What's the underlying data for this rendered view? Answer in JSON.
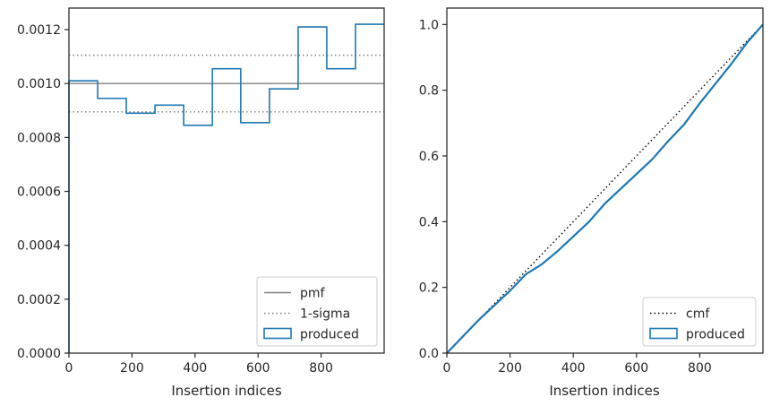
{
  "chart_data": [
    {
      "type": "histogram-step",
      "xlabel": "Insertion indices",
      "ylabel": "",
      "xlim": [
        0,
        1000
      ],
      "ylim": [
        0,
        0.00128
      ],
      "xticks": [
        0,
        200,
        400,
        600,
        800
      ],
      "xtick_labels": [
        "0",
        "200",
        "400",
        "600",
        "800"
      ],
      "yticks": [
        0,
        0.0002,
        0.0004,
        0.0006,
        0.0008,
        0.001,
        0.0012
      ],
      "ytick_labels": [
        "0.0000",
        "0.0002",
        "0.0004",
        "0.0006",
        "0.0008",
        "0.0010",
        "0.0012"
      ],
      "bin_edges": [
        0,
        91,
        182,
        273,
        364,
        455,
        545,
        636,
        727,
        818,
        909,
        1000
      ],
      "series": [
        {
          "name": "produced",
          "style": "step",
          "color": "#1f77b4",
          "values": [
            0.00101,
            0.000945,
            0.00089,
            0.00092,
            0.000845,
            0.001055,
            0.000855,
            0.00098,
            0.00121,
            0.001055,
            0.00122
          ]
        }
      ],
      "reference_lines": [
        {
          "name": "pmf",
          "style": "solid",
          "color": "#808080",
          "y": 0.001
        },
        {
          "name": "1-sigma",
          "style": "dotted",
          "color": "#808080",
          "y": [
            0.000895,
            0.001105
          ]
        }
      ],
      "legend": {
        "placement": "lower-right",
        "entries": [
          {
            "label": "pmf",
            "kind": "solid-line",
            "color": "#808080"
          },
          {
            "label": "1-sigma",
            "kind": "dotted-line",
            "color": "#808080"
          },
          {
            "label": "produced",
            "kind": "patch",
            "color": "#1f77b4"
          }
        ]
      },
      "grid": false
    },
    {
      "type": "line",
      "xlabel": "Insertion indices",
      "ylabel": "",
      "xlim": [
        0,
        1000
      ],
      "ylim": [
        0,
        1.05
      ],
      "xticks": [
        0,
        200,
        400,
        600,
        800
      ],
      "xtick_labels": [
        "0",
        "200",
        "400",
        "600",
        "800"
      ],
      "yticks": [
        0,
        0.2,
        0.4,
        0.6,
        0.8,
        1.0
      ],
      "ytick_labels": [
        "0.0",
        "0.2",
        "0.4",
        "0.6",
        "0.8",
        "1.0"
      ],
      "series": [
        {
          "name": "cmf",
          "style": "dotted",
          "color": "#000000",
          "x": [
            0,
            1000
          ],
          "y": [
            0,
            1.0
          ]
        },
        {
          "name": "produced",
          "style": "step",
          "color": "#1f77b4",
          "x": [
            0,
            50,
            100,
            150,
            200,
            250,
            300,
            350,
            400,
            450,
            500,
            550,
            600,
            650,
            700,
            750,
            800,
            850,
            900,
            950,
            1000
          ],
          "y": [
            0,
            0.05,
            0.1,
            0.145,
            0.19,
            0.24,
            0.27,
            0.31,
            0.355,
            0.4,
            0.455,
            0.5,
            0.545,
            0.59,
            0.645,
            0.695,
            0.76,
            0.82,
            0.88,
            0.945,
            1.0
          ]
        }
      ],
      "legend": {
        "placement": "lower-right",
        "entries": [
          {
            "label": "cmf",
            "kind": "dotted-line",
            "color": "#000000"
          },
          {
            "label": "produced",
            "kind": "patch",
            "color": "#1f77b4"
          }
        ]
      },
      "grid": false
    }
  ]
}
